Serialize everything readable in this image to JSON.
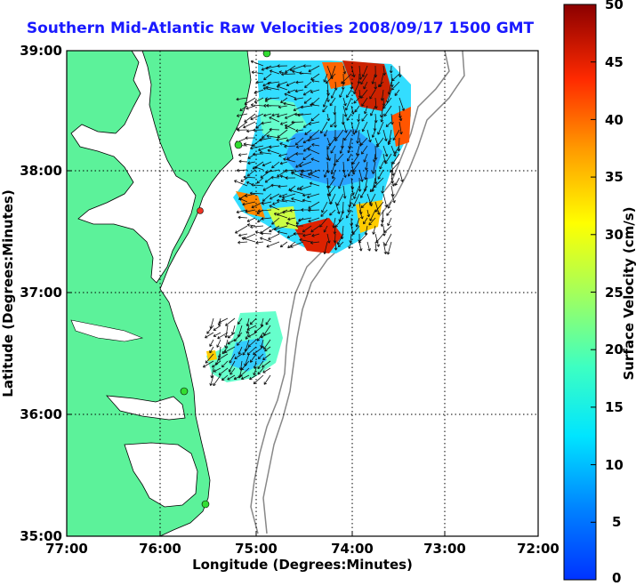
{
  "title": "Southern Mid-Atlantic Raw Velocities 2008/09/17 1500 GMT",
  "xaxis": {
    "label": "Longitude (Degrees:Minutes)",
    "ticks": [
      "77:00",
      "76:00",
      "75:00",
      "74:00",
      "73:00",
      "72:00"
    ]
  },
  "yaxis": {
    "label": "Latitude (Degrees:Minutes)",
    "ticks": [
      "39:00",
      "38:00",
      "37:00",
      "36:00",
      "35:00"
    ]
  },
  "colorbar": {
    "label": "Surface Velocity (cm/s)",
    "ticks": [
      "50",
      "45",
      "40",
      "35",
      "30",
      "25",
      "20",
      "15",
      "10",
      "5",
      "0"
    ],
    "range": [
      0,
      50
    ]
  },
  "colors": {
    "land": "#5cf29a",
    "title": "#1a1aff",
    "station": "#33dd33"
  }
}
